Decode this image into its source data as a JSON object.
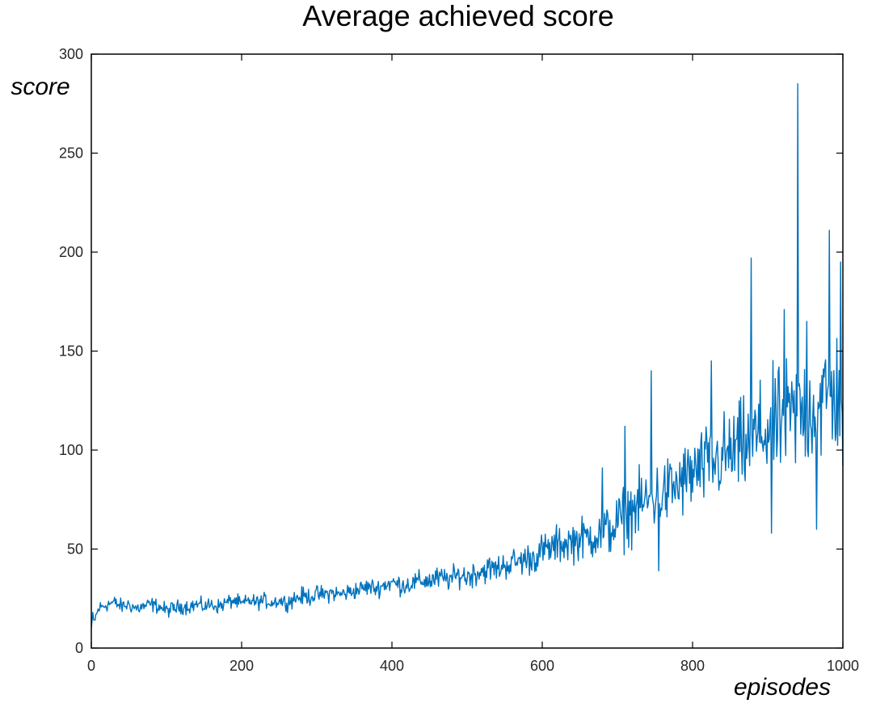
{
  "chart_data": {
    "type": "line",
    "title": "Average achieved score",
    "xlabel": "episodes",
    "ylabel": "score",
    "xlim": [
      0,
      1000
    ],
    "ylim": [
      0,
      300
    ],
    "x_ticks": [
      0,
      200,
      400,
      600,
      800,
      1000
    ],
    "y_ticks": [
      0,
      50,
      100,
      150,
      200,
      250,
      300
    ],
    "grid": false,
    "legend": "none",
    "series": [
      {
        "color": "#0072BD",
        "x": [
          0,
          10,
          20,
          30,
          40,
          50,
          60,
          70,
          80,
          90,
          100,
          110,
          120,
          130,
          140,
          150,
          160,
          170,
          180,
          190,
          200,
          210,
          220,
          230,
          240,
          250,
          260,
          270,
          280,
          290,
          300,
          310,
          320,
          330,
          340,
          350,
          360,
          370,
          380,
          390,
          400,
          410,
          420,
          430,
          440,
          450,
          460,
          470,
          480,
          490,
          500,
          510,
          520,
          530,
          540,
          550,
          560,
          570,
          580,
          590,
          600,
          610,
          620,
          630,
          640,
          650,
          660,
          670,
          680,
          690,
          700,
          710,
          720,
          730,
          740,
          750,
          760,
          770,
          780,
          790,
          800,
          810,
          820,
          830,
          840,
          850,
          860,
          870,
          880,
          890,
          900,
          910,
          920,
          930,
          940,
          950,
          960,
          970,
          980,
          990,
          1000
        ],
        "y": [
          10,
          20,
          22,
          23,
          21,
          22,
          20,
          21,
          22,
          21,
          19,
          20,
          21,
          21,
          22,
          21,
          22,
          21,
          23,
          24,
          22,
          24,
          23,
          24,
          23,
          24,
          23,
          25,
          26,
          26,
          27,
          27,
          28,
          27,
          28,
          29,
          30,
          31,
          30,
          32,
          33,
          32,
          32,
          33,
          34,
          34,
          35,
          35,
          35,
          37,
          36,
          38,
          39,
          40,
          40,
          42,
          43,
          44,
          45,
          46,
          49,
          50,
          52,
          53,
          54,
          55,
          56,
          57,
          58,
          60,
          63,
          66,
          70,
          72,
          74,
          76,
          78,
          80,
          82,
          85,
          88,
          90,
          92,
          94,
          96,
          98,
          100,
          102,
          105,
          108,
          110,
          112,
          114,
          116,
          118,
          120,
          122,
          124,
          126,
          128,
          130
        ],
        "noise_amplitude": [
          4,
          5,
          5,
          5,
          5,
          5,
          5,
          5,
          5,
          5,
          5,
          5,
          5,
          5,
          5,
          5,
          5,
          5,
          5,
          5,
          5,
          5,
          5,
          5,
          5,
          5,
          5,
          6,
          6,
          6,
          6,
          6,
          6,
          6,
          6,
          6,
          6,
          6,
          6,
          6,
          7,
          7,
          7,
          7,
          7,
          8,
          8,
          8,
          8,
          8,
          9,
          9,
          9,
          9,
          9,
          10,
          10,
          10,
          11,
          11,
          12,
          12,
          13,
          13,
          14,
          14,
          15,
          16,
          17,
          18,
          20,
          21,
          22,
          22,
          23,
          23,
          24,
          24,
          25,
          25,
          26,
          26,
          27,
          28,
          29,
          30,
          31,
          32,
          34,
          35,
          36,
          37,
          38,
          39,
          40,
          42,
          42,
          43,
          43,
          44,
          45
        ]
      }
    ],
    "peaks": [
      {
        "x": 680,
        "y": 91
      },
      {
        "x": 710,
        "y": 112
      },
      {
        "x": 745,
        "y": 140
      },
      {
        "x": 755,
        "y": 39
      },
      {
        "x": 825,
        "y": 145
      },
      {
        "x": 878,
        "y": 197
      },
      {
        "x": 905,
        "y": 58
      },
      {
        "x": 922,
        "y": 171
      },
      {
        "x": 940,
        "y": 285
      },
      {
        "x": 952,
        "y": 165
      },
      {
        "x": 965,
        "y": 60
      },
      {
        "x": 982,
        "y": 211
      },
      {
        "x": 997,
        "y": 195
      },
      {
        "x": 1000,
        "y": 92
      }
    ]
  }
}
